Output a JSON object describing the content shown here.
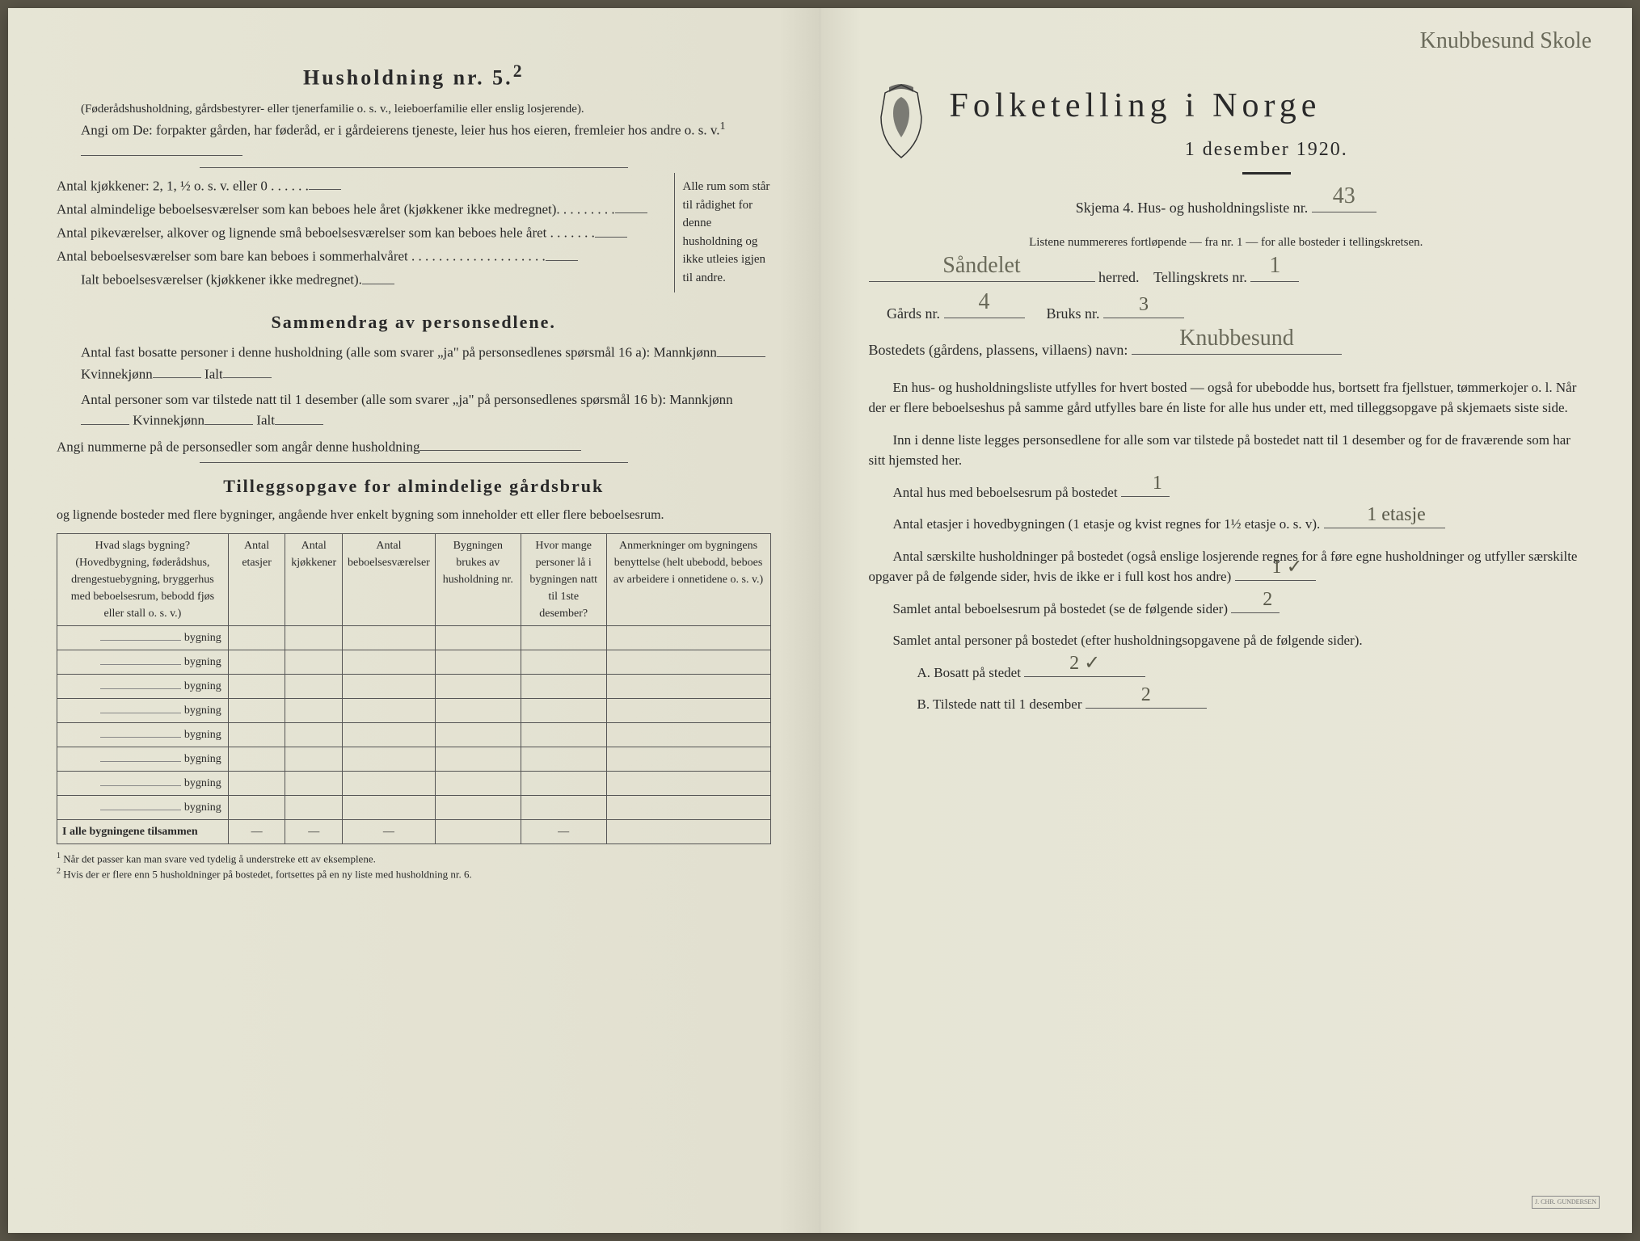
{
  "left": {
    "title": "Husholdning nr. 5.",
    "title_sup": "2",
    "intro1": "(Føderådshusholdning, gårdsbestyrer- eller tjenerfamilie o. s. v., leieboerfamilie eller enslig losjerende).",
    "intro2_a": "Angi om De:",
    "intro2_b": "forpakter gården, har føderåd, er i gårdeierens tjeneste, leier hus hos eieren, fremleier hos andre o. s. v.",
    "intro2_sup": "1",
    "kitchen_lines": [
      "Antal kjøkkener: 2, 1, ½ o. s. v. eller 0 . . . . . .",
      "Antal almindelige beboelsesværelser som kan beboes hele året (kjøkkener ikke medregnet). . . . . . . . .",
      "Antal pikeværelser, alkover og lignende små beboelsesværelser som kan beboes hele året . . . . . . .",
      "Antal beboelsesværelser som bare kan beboes i sommerhalvåret . . . . . . . . . . . . . . . . . . . .",
      "Ialt beboelsesværelser (kjøkkener ikke medregnet)."
    ],
    "brace_text": "Alle rum som står til rådighet for denne husholdning og ikke utleies igjen til andre.",
    "sammen_title": "Sammendrag av personsedlene.",
    "sammen_l1a": "Antal fast bosatte personer i denne husholdning (alle som svarer „ja\" på personsedlenes spørsmål 16 a): Mannkjønn",
    "sammen_kv": "Kvinnekjønn",
    "sammen_ialt": "Ialt",
    "sammen_l2a": "Antal personer som var tilstede natt til 1 desember (alle som svarer „ja\" på personsedlenes spørsmål 16 b): Mannkjønn",
    "sammen_l3": "Angi nummerne på de personsedler som angår denne husholdning",
    "tillegg_title": "Tilleggsopgave for almindelige gårdsbruk",
    "tillegg_sub": "og lignende bosteder med flere bygninger, angående hver enkelt bygning som inneholder ett eller flere beboelsesrum.",
    "table": {
      "headers": [
        "Hvad slags bygning?\n(Hovedbygning, føderådshus, drengestuebygning, bryggerhus med beboelsesrum, bebodd fjøs eller stall o. s. v.)",
        "Antal etasjer",
        "Antal kjøkkener",
        "Antal beboelsesværelser",
        "Bygningen brukes av husholdning nr.",
        "Hvor mange personer lå i bygningen natt til 1ste desember?",
        "Anmerkninger om bygningens benyttelse (helt ubebodd, beboes av arbeidere i onnetidene o. s. v.)"
      ],
      "row_label": "bygning",
      "row_count": 8,
      "footer_label": "I alle bygningene tilsammen",
      "footer_cells": [
        "—",
        "—",
        "—",
        "",
        "—",
        ""
      ]
    },
    "footnote1": "Når det passer kan man svare ved tydelig å understreke ett av eksemplene.",
    "footnote2": "Hvis der er flere enn 5 husholdninger på bostedet, fortsettes på en ny liste med husholdning nr. 6."
  },
  "right": {
    "top_scribble": "Knubbesund Skole",
    "main_title": "Folketelling i Norge",
    "subtitle": "1 desember 1920.",
    "skjema_a": "Skjema 4.  Hus- og husholdningsliste nr.",
    "skjema_nr": "43",
    "listene": "Listene nummereres fortløpende — fra nr. 1 — for alle bosteder i tellingskretsen.",
    "herred_value": "Såndelet",
    "herred_label": "herred.",
    "krets_label": "Tellingskrets nr.",
    "krets_value": "1",
    "gards_label": "Gårds nr.",
    "gards_value": "4",
    "bruks_label": "Bruks nr.",
    "bruks_value": "3",
    "bosted_label": "Bostedets (gårdens, plassens, villaens) navn:",
    "bosted_value": "Knubbesund",
    "para1": "En hus- og husholdningsliste utfylles for hvert bosted — også for ubebodde hus, bortsett fra fjellstuer, tømmerkojer o. l. Når der er flere beboelseshus på samme gård utfylles bare én liste for alle hus under ett, med tilleggsopgave på skjemaets siste side.",
    "para2": "Inn i denne liste legges personsedlene for alle som var tilstede på bostedet natt til 1 desember og for de fraværende som har sitt hjemsted her.",
    "antal_hus_label": "Antal hus med beboelsesrum på bostedet",
    "antal_hus_value": "1",
    "etasjer_label_a": "Antal etasjer i hovedbygningen (1 etasje og kvist regnes for 1½ etasje o. s. v).",
    "etasjer_value": "1 etasje",
    "saerskilt_a": "Antal særskilte husholdninger på bostedet (også enslige losjerende regnes for å føre egne husholdninger og utfyller særskilte opgaver på de følgende sider, hvis de ikke er i full kost hos andre)",
    "saerskilt_value": "1 ✓",
    "samlet_beboe": "Samlet antal beboelsesrum på bostedet (se de følgende sider)",
    "samlet_beboe_value": "2",
    "samlet_pers": "Samlet antal personer på bostedet (efter husholdningsopgavene på de følgende sider).",
    "bosatt_label": "A.  Bosatt på stedet",
    "bosatt_value": "2 ✓",
    "tilstede_label": "B.  Tilstede natt til 1 desember",
    "tilstede_value": "2",
    "stamp": "J. CHR. GUNDERSEN"
  }
}
